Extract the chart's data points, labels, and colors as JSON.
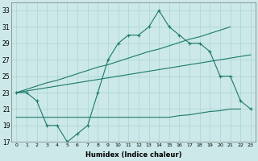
{
  "xlabel": "Humidex (Indice chaleur)",
  "x": [
    0,
    1,
    2,
    3,
    4,
    5,
    6,
    7,
    8,
    9,
    10,
    11,
    12,
    13,
    14,
    15,
    16,
    17,
    18,
    19,
    20,
    21,
    22,
    23
  ],
  "line_main": [
    23,
    23,
    22,
    19,
    19,
    17,
    18,
    19,
    23,
    27,
    29,
    30,
    30,
    31,
    33,
    31,
    30,
    29,
    29,
    28,
    25,
    25,
    22,
    21
  ],
  "line_trend_upper": [
    23.0,
    23.4,
    23.8,
    24.2,
    24.5,
    24.9,
    25.3,
    25.7,
    26.1,
    26.4,
    26.8,
    27.2,
    27.6,
    28.0,
    28.3,
    28.7,
    29.1,
    29.5,
    29.8,
    30.2,
    30.6,
    31.0,
    null,
    null
  ],
  "line_trend_lower": [
    23.0,
    23.2,
    23.4,
    23.6,
    23.8,
    24.0,
    24.2,
    24.4,
    24.6,
    24.8,
    25.0,
    25.2,
    25.4,
    25.6,
    25.8,
    26.0,
    26.2,
    26.4,
    26.6,
    26.8,
    27.0,
    27.2,
    27.4,
    27.6
  ],
  "line_bottom": [
    20,
    20,
    20,
    20,
    20,
    20,
    20,
    20,
    20,
    20,
    20,
    20,
    20,
    20,
    20,
    20,
    20.2,
    20.3,
    20.5,
    20.7,
    20.8,
    21.0,
    21.0,
    null
  ],
  "ylim": [
    17,
    34
  ],
  "yticks": [
    17,
    19,
    21,
    23,
    25,
    27,
    29,
    31,
    33
  ],
  "color": "#1a7a6a",
  "bg_color": "#cce8e8",
  "grid_color": "#a8d4d4"
}
